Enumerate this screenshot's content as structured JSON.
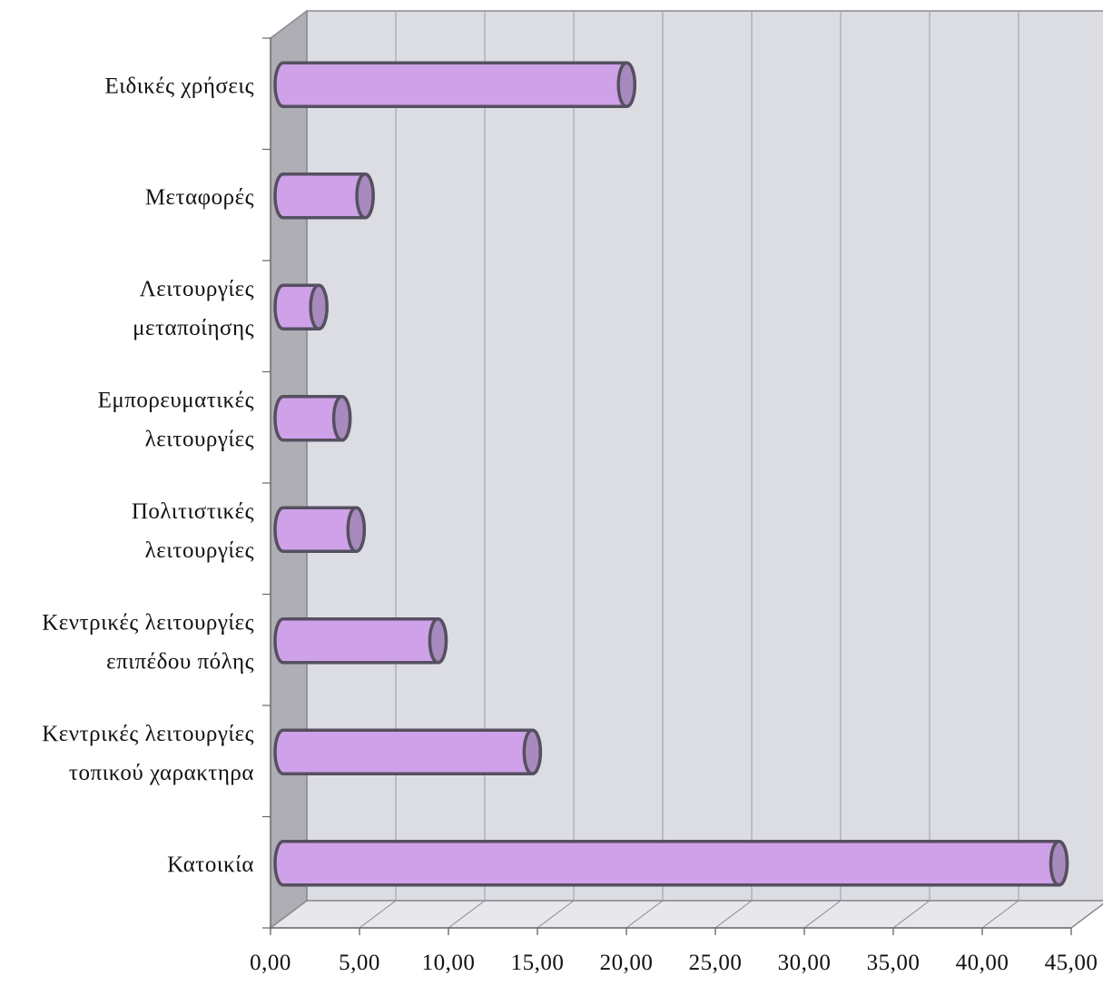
{
  "chart_data": {
    "type": "bar",
    "orientation": "horizontal",
    "style": "3d-cylinder",
    "categories": [
      "Ειδικές χρήσεις",
      "Μεταφορές",
      "Λειτουργίες μεταποίησης",
      "Εμπορευματικές λειτουργίες",
      "Πολιτιστικές λειτουργίες",
      "Κεντρικές λειτουργίες επιπέδου πόλης",
      "Κεντρικές λειτουργίες τοπικού χαρακτηρα",
      "Κατοικία"
    ],
    "category_lines": [
      [
        "Ειδικές χρήσεις"
      ],
      [
        "Μεταφορές"
      ],
      [
        "Λειτουργίες",
        "μεταποίησης"
      ],
      [
        "Εμπορευματικές",
        "λειτουργίες"
      ],
      [
        "Πολιτιστικές",
        "λειτουργίες"
      ],
      [
        "Κεντρικές λειτουργίες",
        "επιπέδου πόλης"
      ],
      [
        "Κεντρικές λειτουργίες",
        "τοπικού χαρακτηρα"
      ],
      [
        "Κατοικία"
      ]
    ],
    "values": [
      19.5,
      4.8,
      2.2,
      3.5,
      4.3,
      8.9,
      14.2,
      43.8
    ],
    "xlim": [
      0,
      45
    ],
    "x_ticks": [
      "0,00",
      "5,00",
      "10,00",
      "15,00",
      "20,00",
      "25,00",
      "30,00",
      "35,00",
      "40,00",
      "45,00"
    ],
    "title": "",
    "xlabel": "",
    "ylabel": "",
    "grid": true,
    "legend": "none",
    "colors": {
      "bar_fill": "#cfa1e8",
      "bar_cap": "#a88abe",
      "bar_stroke": "#555060",
      "wall": "#dcdce3",
      "wall_side": "#aeaeb4",
      "floor": "#e7e7ec",
      "grid": "#9a9aa3"
    }
  }
}
